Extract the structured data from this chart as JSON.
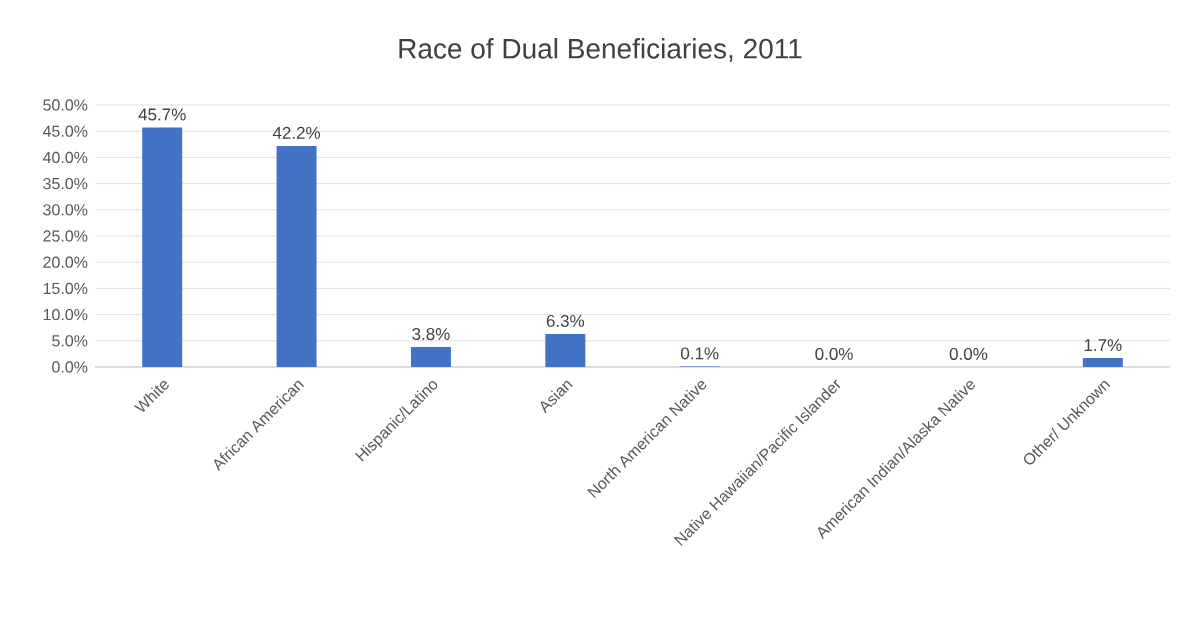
{
  "chart_data": {
    "type": "bar",
    "title": "Race of Dual Beneficiaries, 2011",
    "categories": [
      "White",
      "African American",
      "Hispanic/Latino",
      "Asian",
      "North American Native",
      "Native Hawaiian/Pacific Islander",
      "American Indian/Alaska Native",
      "Other/ Unknown"
    ],
    "values": [
      45.7,
      42.2,
      3.8,
      6.3,
      0.1,
      0.0,
      0.0,
      1.7
    ],
    "value_labels": [
      "45.7%",
      "42.2%",
      "3.8%",
      "6.3%",
      "0.1%",
      "0.0%",
      "0.0%",
      "1.7%"
    ],
    "color": "#4472c4",
    "ylim": [
      0,
      50
    ],
    "yticks": [
      {
        "value": 0,
        "label": "0.0%"
      },
      {
        "value": 5,
        "label": "5.0%"
      },
      {
        "value": 10,
        "label": "10.0%"
      },
      {
        "value": 15,
        "label": "15.0%"
      },
      {
        "value": 20,
        "label": "20.0%"
      },
      {
        "value": 25,
        "label": "25.0%"
      },
      {
        "value": 30,
        "label": "30.0%"
      },
      {
        "value": 35,
        "label": "35.0%"
      },
      {
        "value": 40,
        "label": "40.0%"
      },
      {
        "value": 45,
        "label": "45.0%"
      },
      {
        "value": 50,
        "label": "50.0%"
      }
    ],
    "grid": "y"
  }
}
